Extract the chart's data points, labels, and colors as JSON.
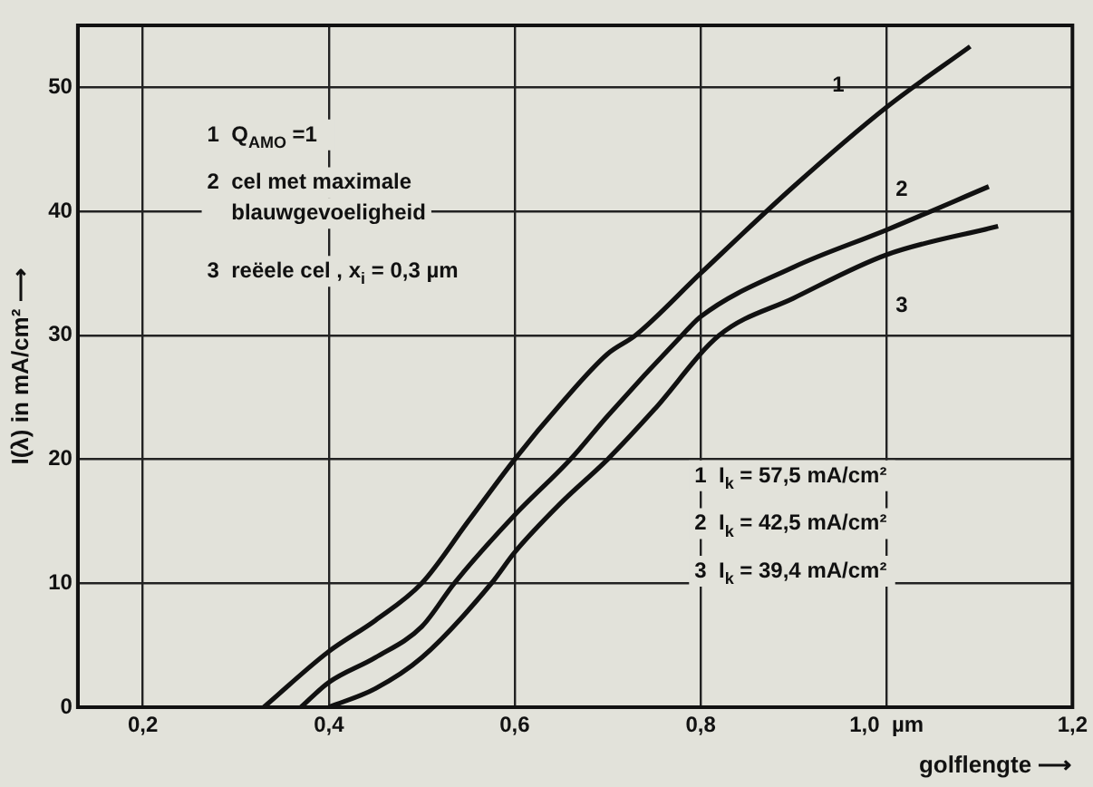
{
  "chart_data": {
    "type": "line",
    "xlabel": "golflengte ⟶",
    "ylabel": "I(λ) in mA/cm² ⟶",
    "xlim": [
      0.13,
      1.2
    ],
    "xticks": [
      {
        "value": 0.2,
        "label": "0,2"
      },
      {
        "value": 0.4,
        "label": "0,4"
      },
      {
        "value": 0.6,
        "label": "0,6"
      },
      {
        "value": 0.8,
        "label": "0,8"
      },
      {
        "value": 1.0,
        "label": "1,0  µm"
      },
      {
        "value": 1.2,
        "label": "1,2"
      }
    ],
    "ylim": [
      0,
      55
    ],
    "yticks": [
      0,
      10,
      20,
      30,
      40,
      50
    ],
    "grid": true,
    "legend": false,
    "marker": "none",
    "line_style": "solid",
    "series": [
      {
        "name": "1",
        "color": "#111111",
        "x": [
          0.33,
          0.4,
          0.45,
          0.5,
          0.55,
          0.6,
          0.65,
          0.7,
          0.73,
          0.8,
          0.9,
          1.0,
          1.09
        ],
        "values": [
          0,
          4.5,
          7,
          10,
          15,
          20,
          24.5,
          28.5,
          30,
          35,
          42,
          48.4,
          53.3
        ]
      },
      {
        "name": "2",
        "color": "#111111",
        "x": [
          0.37,
          0.4,
          0.45,
          0.5,
          0.535,
          0.6,
          0.66,
          0.7,
          0.78,
          0.8,
          0.9,
          1.0,
          1.11
        ],
        "values": [
          0,
          2,
          4,
          6.5,
          10,
          15.5,
          20,
          23.5,
          30,
          31.5,
          35.5,
          38.5,
          42
        ]
      },
      {
        "name": "3",
        "color": "#111111",
        "x": [
          0.4,
          0.45,
          0.5,
          0.575,
          0.6,
          0.65,
          0.7,
          0.75,
          0.82,
          0.9,
          1.0,
          1.12
        ],
        "values": [
          0,
          1.5,
          4,
          10,
          12.5,
          16.5,
          20,
          24,
          30,
          33,
          36.5,
          38.8
        ]
      }
    ],
    "annotations": [
      "1  Q$_{AMO}$ =1",
      "2  cel met maximale",
      "    blauwgevoeligheid",
      "3  reëele cel , x$_{i}$ = 0,3 µm",
      "1  I$_{k}$ = 57,5 mA/cm²",
      "2  I$_{k}$ = 42,5 mA/cm²",
      "3  I$_{k}$ = 39,4 mA/cm²"
    ]
  }
}
